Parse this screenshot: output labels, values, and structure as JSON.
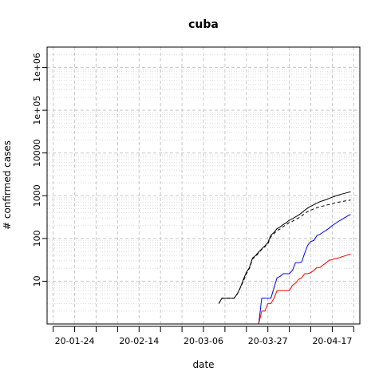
{
  "chart_data": {
    "type": "line",
    "title": "cuba",
    "xlabel": "date",
    "ylabel": "# confirmed cases",
    "y_scale": "log10",
    "grid": true,
    "x_range": [
      "2020-01-15",
      "2020-04-26"
    ],
    "y_range": [
      1,
      3000000
    ],
    "x_tick_labels": [
      {
        "date": "2020-01-24",
        "label": "20-01-24"
      },
      {
        "date": "2020-02-14",
        "label": "20-02-14"
      },
      {
        "date": "2020-03-06",
        "label": "20-03-06"
      },
      {
        "date": "2020-03-27",
        "label": "20-03-27"
      },
      {
        "date": "2020-04-17",
        "label": "20-04-17"
      }
    ],
    "x_minor_ticks": [
      "2020-01-17",
      "2020-01-31",
      "2020-02-07",
      "2020-02-21",
      "2020-02-28",
      "2020-03-13",
      "2020-03-20",
      "2020-04-03",
      "2020-04-10",
      "2020-04-24"
    ],
    "y_ticks": [
      {
        "value": 10,
        "label": "10"
      },
      {
        "value": 100,
        "label": "100"
      },
      {
        "value": 1000,
        "label": "1000"
      },
      {
        "value": 10000,
        "label": "10000"
      },
      {
        "value": 100000,
        "label": "1e+05"
      },
      {
        "value": 1000000,
        "label": "1e+06"
      }
    ],
    "series": [
      {
        "color": "#000000",
        "dash": "solid",
        "points": [
          [
            "2020-03-11",
            3
          ],
          [
            "2020-03-12",
            4
          ],
          [
            "2020-03-13",
            4
          ],
          [
            "2020-03-14",
            4
          ],
          [
            "2020-03-15",
            4
          ],
          [
            "2020-03-16",
            4
          ],
          [
            "2020-03-17",
            5
          ],
          [
            "2020-03-18",
            7
          ],
          [
            "2020-03-19",
            11
          ],
          [
            "2020-03-20",
            16
          ],
          [
            "2020-03-21",
            21
          ],
          [
            "2020-03-22",
            35
          ],
          [
            "2020-03-23",
            40
          ],
          [
            "2020-03-24",
            48
          ],
          [
            "2020-03-25",
            57
          ],
          [
            "2020-03-26",
            67
          ],
          [
            "2020-03-27",
            80
          ],
          [
            "2020-03-28",
            119
          ],
          [
            "2020-03-29",
            139
          ],
          [
            "2020-03-30",
            170
          ],
          [
            "2020-03-31",
            186
          ],
          [
            "2020-04-01",
            212
          ],
          [
            "2020-04-02",
            233
          ],
          [
            "2020-04-03",
            269
          ],
          [
            "2020-04-04",
            288
          ],
          [
            "2020-04-05",
            320
          ],
          [
            "2020-04-06",
            350
          ],
          [
            "2020-04-07",
            396
          ],
          [
            "2020-04-08",
            457
          ],
          [
            "2020-04-09",
            515
          ],
          [
            "2020-04-10",
            564
          ],
          [
            "2020-04-11",
            620
          ],
          [
            "2020-04-12",
            669
          ],
          [
            "2020-04-13",
            726
          ],
          [
            "2020-04-14",
            766
          ],
          [
            "2020-04-15",
            814
          ],
          [
            "2020-04-16",
            862
          ],
          [
            "2020-04-17",
            923
          ],
          [
            "2020-04-18",
            986
          ],
          [
            "2020-04-19",
            1035
          ],
          [
            "2020-04-20",
            1087
          ],
          [
            "2020-04-21",
            1137
          ],
          [
            "2020-04-22",
            1189
          ],
          [
            "2020-04-23",
            1235
          ]
        ]
      },
      {
        "color": "#000000",
        "dash": "dashed",
        "points": [
          [
            "2020-03-11",
            3
          ],
          [
            "2020-03-12",
            4
          ],
          [
            "2020-03-13",
            4
          ],
          [
            "2020-03-14",
            4
          ],
          [
            "2020-03-15",
            4
          ],
          [
            "2020-03-16",
            4
          ],
          [
            "2020-03-17",
            5
          ],
          [
            "2020-03-18",
            7
          ],
          [
            "2020-03-19",
            10
          ],
          [
            "2020-03-20",
            15
          ],
          [
            "2020-03-21",
            20
          ],
          [
            "2020-03-22",
            33
          ],
          [
            "2020-03-23",
            38
          ],
          [
            "2020-03-24",
            46
          ],
          [
            "2020-03-25",
            55
          ],
          [
            "2020-03-26",
            64
          ],
          [
            "2020-03-27",
            75
          ],
          [
            "2020-03-28",
            110
          ],
          [
            "2020-03-29",
            129
          ],
          [
            "2020-03-30",
            155
          ],
          [
            "2020-03-31",
            167
          ],
          [
            "2020-04-01",
            190
          ],
          [
            "2020-04-02",
            208
          ],
          [
            "2020-04-03",
            238
          ],
          [
            "2020-04-04",
            252
          ],
          [
            "2020-04-05",
            278
          ],
          [
            "2020-04-06",
            301
          ],
          [
            "2020-04-07",
            336
          ],
          [
            "2020-04-08",
            384
          ],
          [
            "2020-04-09",
            426
          ],
          [
            "2020-04-10",
            458
          ],
          [
            "2020-04-11",
            493
          ],
          [
            "2020-04-12",
            523
          ],
          [
            "2020-04-13",
            555
          ],
          [
            "2020-04-14",
            575
          ],
          [
            "2020-04-15",
            598
          ],
          [
            "2020-04-16",
            622
          ],
          [
            "2020-04-17",
            652
          ],
          [
            "2020-04-18",
            682
          ],
          [
            "2020-04-19",
            705
          ],
          [
            "2020-04-20",
            728
          ],
          [
            "2020-04-21",
            750
          ],
          [
            "2020-04-22",
            772
          ],
          [
            "2020-04-23",
            790
          ]
        ]
      },
      {
        "color": "#0000ff",
        "dash": "solid",
        "points": [
          [
            "2020-03-19",
            1
          ],
          [
            "2020-03-20",
            1
          ],
          [
            "2020-03-21",
            1
          ],
          [
            "2020-03-22",
            1
          ],
          [
            "2020-03-23",
            1
          ],
          [
            "2020-03-24",
            1
          ],
          [
            "2020-03-25",
            4
          ],
          [
            "2020-03-26",
            4
          ],
          [
            "2020-03-27",
            4
          ],
          [
            "2020-03-28",
            4
          ],
          [
            "2020-03-29",
            7
          ],
          [
            "2020-03-30",
            12
          ],
          [
            "2020-03-31",
            13
          ],
          [
            "2020-04-01",
            15
          ],
          [
            "2020-04-02",
            15
          ],
          [
            "2020-04-03",
            15
          ],
          [
            "2020-04-04",
            18
          ],
          [
            "2020-04-05",
            27
          ],
          [
            "2020-04-06",
            27
          ],
          [
            "2020-04-07",
            28
          ],
          [
            "2020-04-08",
            45
          ],
          [
            "2020-04-09",
            70
          ],
          [
            "2020-04-10",
            85
          ],
          [
            "2020-04-11",
            90
          ],
          [
            "2020-04-12",
            117
          ],
          [
            "2020-04-13",
            125
          ],
          [
            "2020-04-14",
            140
          ],
          [
            "2020-04-15",
            155
          ],
          [
            "2020-04-16",
            175
          ],
          [
            "2020-04-17",
            200
          ],
          [
            "2020-04-18",
            225
          ],
          [
            "2020-04-19",
            250
          ],
          [
            "2020-04-20",
            275
          ],
          [
            "2020-04-21",
            305
          ],
          [
            "2020-04-22",
            335
          ],
          [
            "2020-04-23",
            365
          ]
        ]
      },
      {
        "color": "#ff0000",
        "dash": "solid",
        "points": [
          [
            "2020-03-19",
            1
          ],
          [
            "2020-03-20",
            1
          ],
          [
            "2020-03-21",
            1
          ],
          [
            "2020-03-22",
            1
          ],
          [
            "2020-03-23",
            1
          ],
          [
            "2020-03-24",
            1
          ],
          [
            "2020-03-25",
            2
          ],
          [
            "2020-03-26",
            2
          ],
          [
            "2020-03-27",
            3
          ],
          [
            "2020-03-28",
            3
          ],
          [
            "2020-03-29",
            4
          ],
          [
            "2020-03-30",
            6
          ],
          [
            "2020-03-31",
            6
          ],
          [
            "2020-04-01",
            6
          ],
          [
            "2020-04-02",
            6
          ],
          [
            "2020-04-03",
            6
          ],
          [
            "2020-04-04",
            8
          ],
          [
            "2020-04-05",
            9
          ],
          [
            "2020-04-06",
            11
          ],
          [
            "2020-04-07",
            12
          ],
          [
            "2020-04-08",
            15
          ],
          [
            "2020-04-09",
            15
          ],
          [
            "2020-04-10",
            16
          ],
          [
            "2020-04-11",
            18
          ],
          [
            "2020-04-12",
            21
          ],
          [
            "2020-04-13",
            21
          ],
          [
            "2020-04-14",
            24
          ],
          [
            "2020-04-15",
            27
          ],
          [
            "2020-04-16",
            31
          ],
          [
            "2020-04-17",
            32
          ],
          [
            "2020-04-18",
            34
          ],
          [
            "2020-04-19",
            35
          ],
          [
            "2020-04-20",
            37
          ],
          [
            "2020-04-21",
            39
          ],
          [
            "2020-04-22",
            41
          ],
          [
            "2020-04-23",
            43
          ]
        ]
      }
    ]
  }
}
